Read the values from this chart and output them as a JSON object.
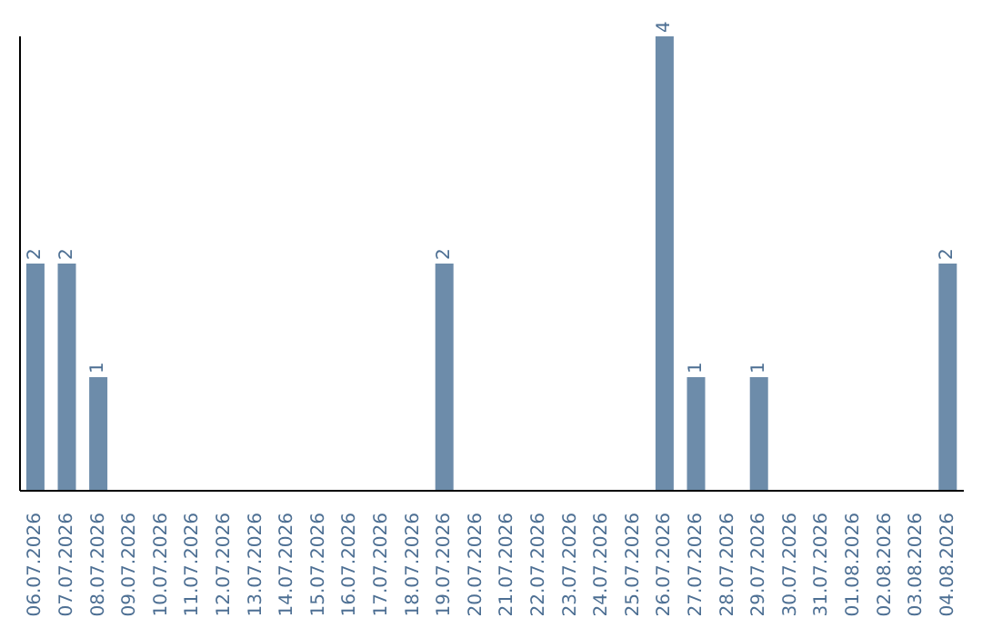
{
  "chart_data": {
    "type": "bar",
    "categories": [
      "06.07.2026",
      "07.07.2026",
      "08.07.2026",
      "09.07.2026",
      "10.07.2026",
      "11.07.2026",
      "12.07.2026",
      "13.07.2026",
      "14.07.2026",
      "15.07.2026",
      "16.07.2026",
      "17.07.2026",
      "18.07.2026",
      "19.07.2026",
      "20.07.2026",
      "21.07.2026",
      "22.07.2026",
      "23.07.2026",
      "24.07.2026",
      "25.07.2026",
      "26.07.2026",
      "27.07.2026",
      "28.07.2026",
      "29.07.2026",
      "30.07.2026",
      "31.07.2026",
      "01.08.2026",
      "02.08.2026",
      "03.08.2026",
      "04.08.2026"
    ],
    "values": [
      2,
      2,
      1,
      0,
      0,
      0,
      0,
      0,
      0,
      0,
      0,
      0,
      0,
      2,
      0,
      0,
      0,
      0,
      0,
      0,
      4,
      1,
      0,
      1,
      0,
      0,
      0,
      0,
      0,
      2
    ],
    "value_labels": [
      "2",
      "2",
      "1",
      null,
      null,
      null,
      null,
      null,
      null,
      null,
      null,
      null,
      null,
      "2",
      null,
      null,
      null,
      null,
      null,
      null,
      "4",
      "1",
      null,
      "1",
      null,
      null,
      null,
      null,
      null,
      "2"
    ],
    "color": "#6d8caa",
    "grid": false,
    "legend": false,
    "tick_labels": "x"
  }
}
